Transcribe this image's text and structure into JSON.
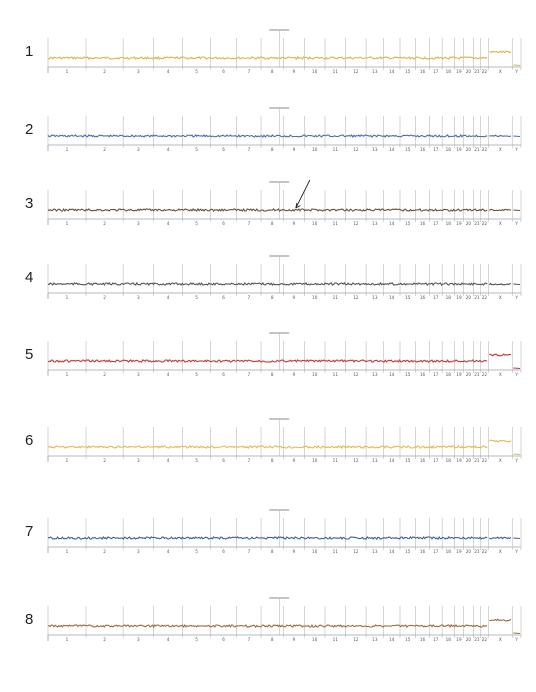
{
  "chart_data": {
    "type": "line",
    "description_kind": "genome-wide copy-number profiles",
    "chromosome_labels": [
      "1",
      "2",
      "3",
      "4",
      "5",
      "6",
      "7",
      "8",
      "9",
      "10",
      "11",
      "12",
      "13",
      "14",
      "15",
      "16",
      "17",
      "18",
      "19",
      "20",
      "21",
      "22",
      "X",
      "Y"
    ],
    "panels": [
      {
        "label": "1",
        "color": "#d9b64a",
        "x_gain": 1
      },
      {
        "label": "2",
        "color": "#4d6fa8",
        "x_gain": 0
      },
      {
        "label": "3",
        "color": "#6b4f3a",
        "x_gain": 0,
        "arrow_at_chromosome": "9"
      },
      {
        "label": "4",
        "color": "#555555",
        "x_gain": 0
      },
      {
        "label": "5",
        "color": "#c8353a",
        "x_gain": 1
      },
      {
        "label": "6",
        "color": "#e0bb54",
        "x_gain": 1
      },
      {
        "label": "7",
        "color": "#3f5f98",
        "x_gain": 0
      },
      {
        "label": "8",
        "color": "#a06a3c",
        "x_gain": 1
      }
    ]
  }
}
